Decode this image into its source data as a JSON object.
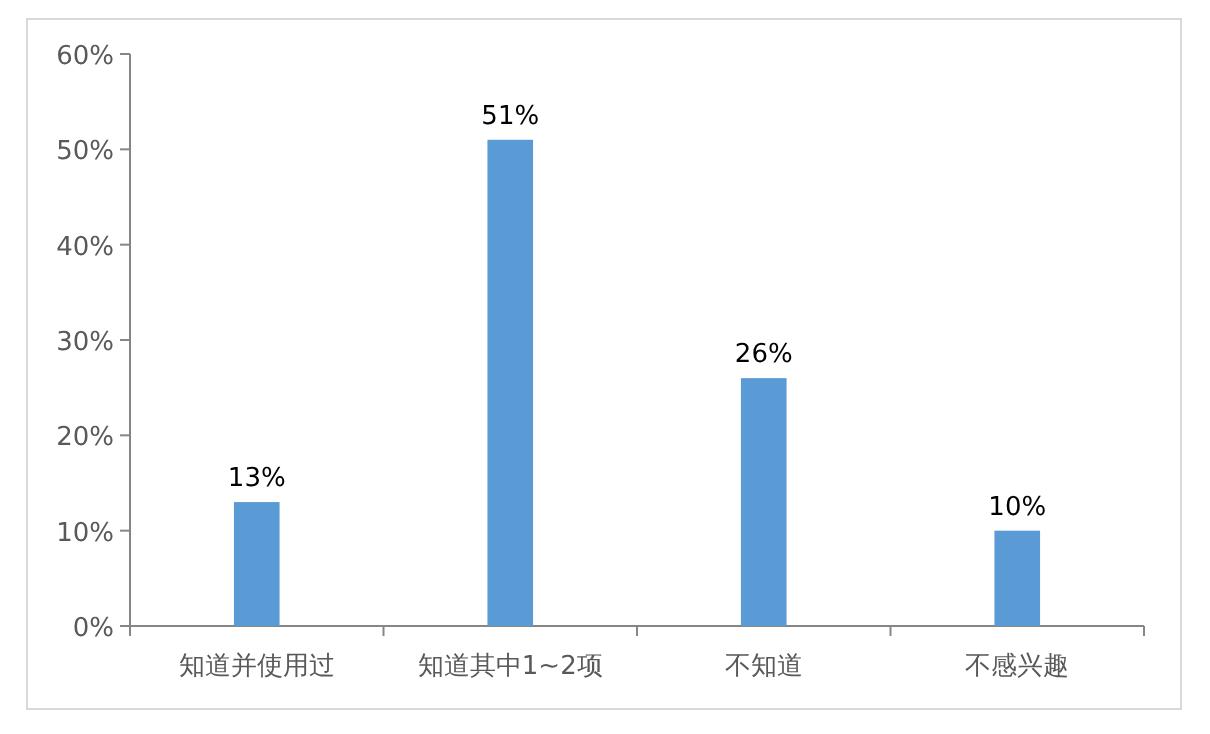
{
  "chart_data": {
    "type": "bar",
    "categories": [
      "知道并使用过",
      "知道其中1~2项",
      "不知道",
      "不感兴趣"
    ],
    "values": [
      13,
      51,
      26,
      10
    ],
    "value_labels": [
      "13%",
      "51%",
      "26%",
      "10%"
    ],
    "color": "#5b9bd5",
    "ylim": [
      0,
      60
    ],
    "yticks": [
      {
        "value": 0,
        "label": "0%"
      },
      {
        "value": 10,
        "label": "10%"
      },
      {
        "value": 20,
        "label": "20%"
      },
      {
        "value": 30,
        "label": "30%"
      },
      {
        "value": 40,
        "label": "40%"
      },
      {
        "value": 50,
        "label": "50%"
      },
      {
        "value": 60,
        "label": "60%"
      }
    ],
    "grid": false
  }
}
